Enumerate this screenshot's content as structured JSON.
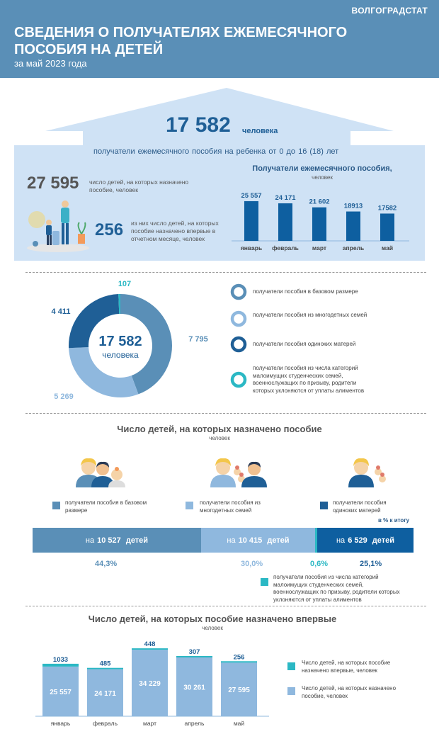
{
  "brand": "ВОЛГОГРАДСТАТ",
  "header": {
    "title": "СВЕДЕНИЯ О ПОЛУЧАТЕЛЯХ ЕЖЕМЕСЯЧНОГО ПОСОБИЯ НА ДЕТЕЙ",
    "subtitle": "за май 2023 года"
  },
  "colors": {
    "base": "#5a8fb7",
    "large": "#8fb8de",
    "single": "#1f5f96",
    "cat": "#2bb8c4",
    "bar": "#0e5fa0",
    "house": "#cfe2f5"
  },
  "summary": {
    "total": "17 582",
    "total_unit": "человека",
    "caption": "получатели ежемесячного пособия на ребенка от 0 до 16 (18) лет",
    "children_value": "27 595",
    "children_text": "число детей, на которых назначено пособие, человек",
    "first_value": "256",
    "first_text": "из них число детей, на которых пособие назначено впервые в отчетном месяце, человек"
  },
  "legend_donut": {
    "base": "получатели пособия в базовом размере",
    "large": "получатели пособия из многодетных семей",
    "single": "получатели пособия одиноких матерей",
    "cat": "получатели пособия из числа категорий малоимущих студенческих семей, военнослужащих по призыву, родители которых уклоняются от уплаты алиментов"
  },
  "section2": {
    "title": "Число детей, на которых назначено пособие",
    "unit": "человек",
    "legend_base": "получатели пособия в базовом размере",
    "legend_large": "получатели пособия из многодетных семей",
    "legend_single": "получатели пособия одиноких матерей",
    "pct_note": "в % к итогу",
    "seg_prefix": "на",
    "seg_suffix": "детей",
    "seg_values": [
      "10 527",
      "10 415",
      "6 529"
    ],
    "pcts": [
      "44,3%",
      "30,0%",
      "0,6%",
      "25,1%"
    ],
    "cat_note": "получатели пособия из числа категорий малоимущих студенческих семей, военнослужащих по призыву, родители которых уклоняются от уплаты алиментов"
  },
  "section3": {
    "title": "Число детей, на которых пособие назначено впервые",
    "unit": "человек",
    "legend_first": "Число детей, на которых пособие назначено впервые, человек",
    "legend_total": "Число детей, на которых назначено пособие, человек"
  },
  "chart_data": [
    {
      "type": "bar",
      "title": "Получатели ежемесячного пособия,",
      "ylabel": "человек",
      "categories": [
        "январь",
        "февраль",
        "март",
        "апрель",
        "май"
      ],
      "values": [
        25557,
        24171,
        21602,
        18913,
        17582
      ],
      "labels": [
        "25 557",
        "24 171",
        "21 602",
        "18913",
        "17582"
      ]
    },
    {
      "type": "pie",
      "center_value": "17 582",
      "center_label": "человека",
      "slices": [
        {
          "name": "получатели пособия в базовом размере",
          "value": 7795,
          "label": "7 795"
        },
        {
          "name": "получатели пособия из многодетных семей",
          "value": 5269,
          "label": "5 269"
        },
        {
          "name": "получатели пособия одиноких матерей",
          "value": 4411,
          "label": "4 411"
        },
        {
          "name": "получатели пособия из числа категорий малоимущих студенческих семей, военнослужащих по призыву, родители которых уклоняются от уплаты алиментов",
          "value": 107,
          "label": "107"
        }
      ]
    },
    {
      "type": "bar",
      "title": "Число детей, на которых пособие назначено впервые",
      "ylabel": "человек",
      "categories": [
        "январь",
        "февраль",
        "март",
        "апрель",
        "май"
      ],
      "series": [
        {
          "name": "Число детей, на которых назначено пособие, человек",
          "values": [
            25557,
            24171,
            34229,
            30261,
            27595
          ],
          "labels": [
            "25 557",
            "24 171",
            "34 229",
            "30 261",
            "27 595"
          ]
        },
        {
          "name": "Число детей, на которых пособие назначено впервые, человек",
          "values": [
            1033,
            485,
            448,
            307,
            256
          ],
          "labels": [
            "1033",
            "485",
            "448",
            "307",
            "256"
          ]
        }
      ]
    }
  ]
}
